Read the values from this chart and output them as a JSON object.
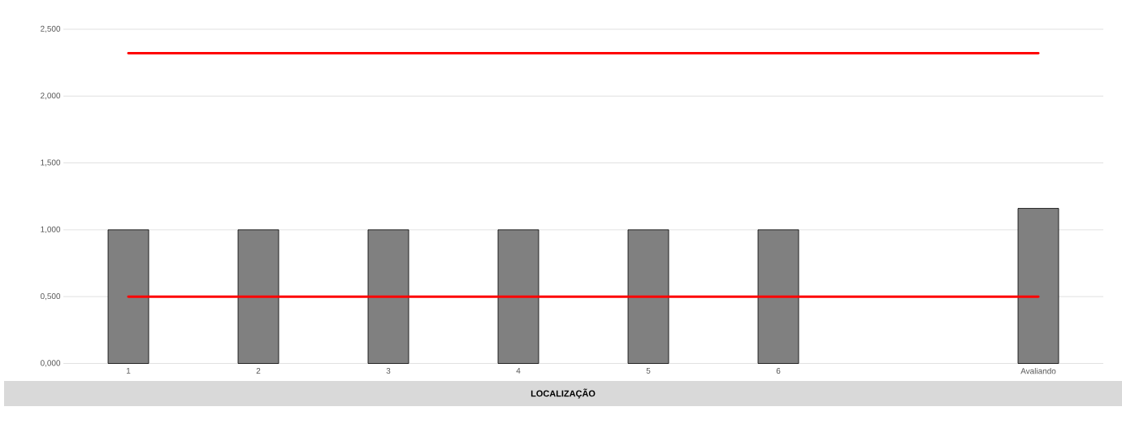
{
  "chart_data": {
    "type": "bar",
    "xlabel": "LOCALIZAÇÃO",
    "categories": [
      "1",
      "2",
      "3",
      "4",
      "5",
      "6",
      null,
      "Avaliando"
    ],
    "series": [
      {
        "color": "#808080",
        "values": [
          1.0,
          1.0,
          1.0,
          1.0,
          1.0,
          1.0,
          null,
          1.16
        ]
      },
      {
        "type": "line",
        "color": "#ff0000",
        "values": [
          2.32,
          2.32,
          2.32,
          2.32,
          2.32,
          2.32,
          2.32,
          2.32
        ]
      },
      {
        "type": "line",
        "color": "#ff0000",
        "values": [
          0.5,
          0.5,
          0.5,
          0.5,
          0.5,
          0.5,
          0.5,
          0.5
        ]
      }
    ],
    "ylim": [
      0,
      2.5
    ],
    "yticks": [
      {
        "value": 0,
        "label": "0,000"
      },
      {
        "value": 0.5,
        "label": "0,500"
      },
      {
        "value": 1.0,
        "label": "1,000"
      },
      {
        "value": 1.5,
        "label": "1,500"
      },
      {
        "value": 2.0,
        "label": "2,000"
      },
      {
        "value": 2.5,
        "label": "2,500"
      }
    ],
    "grid": "y"
  }
}
